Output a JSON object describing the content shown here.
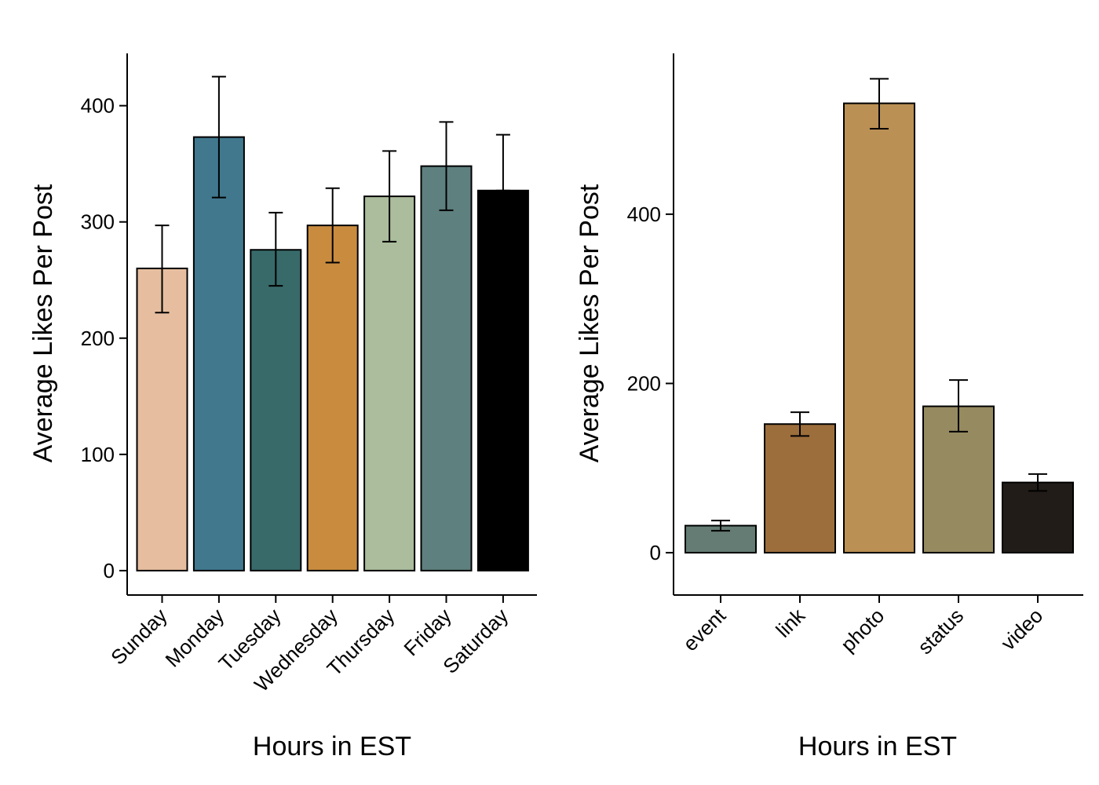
{
  "chart_data": [
    {
      "type": "bar",
      "title": "",
      "xlabel": "Hours in EST",
      "ylabel": "Average Likes Per Post",
      "ylim": [
        -21,
        445
      ],
      "yticks": [
        0,
        100,
        200,
        300,
        400
      ],
      "ytick_labels": [
        "0",
        "100",
        "200",
        "300",
        "400"
      ],
      "categories": [
        "Sunday",
        "Monday",
        "Tuesday",
        "Wednesday",
        "Thursday",
        "Friday",
        "Saturday"
      ],
      "values": [
        260,
        373,
        276,
        297,
        322,
        348,
        327
      ],
      "error_low": [
        222,
        321,
        245,
        265,
        283,
        310,
        327
      ],
      "error_high": [
        297,
        425,
        308,
        329,
        361,
        386,
        375
      ],
      "colors": [
        "#E6BE9F",
        "#41788E",
        "#386A6A",
        "#C98C3F",
        "#ABBD9C",
        "#5E807F",
        "#000000"
      ],
      "grid": false,
      "legend": "none"
    },
    {
      "type": "bar",
      "title": "",
      "xlabel": "Hours in EST",
      "ylabel": "Average Likes Per Post",
      "ylim": [
        -50,
        590
      ],
      "yticks": [
        0,
        200,
        400
      ],
      "ytick_labels": [
        "0",
        "200",
        "400"
      ],
      "categories": [
        "event",
        "link",
        "photo",
        "status",
        "video"
      ],
      "values": [
        32,
        152,
        531,
        173,
        83
      ],
      "error_low": [
        26,
        138,
        501,
        143,
        73
      ],
      "error_high": [
        38,
        166,
        560,
        204,
        93
      ],
      "colors": [
        "#647C74",
        "#9C6E3C",
        "#BA9054",
        "#958A60",
        "#211C18"
      ],
      "grid": false,
      "legend": "none"
    }
  ]
}
